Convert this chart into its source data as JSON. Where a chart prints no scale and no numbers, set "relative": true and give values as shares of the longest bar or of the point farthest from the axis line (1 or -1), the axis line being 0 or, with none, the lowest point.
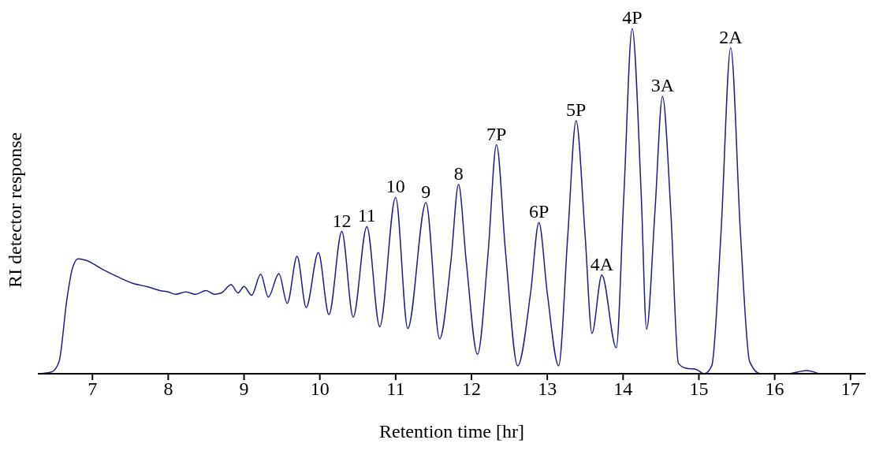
{
  "chart_data": {
    "type": "line",
    "xlabel": "Retention time [hr]",
    "ylabel": "RI detector response",
    "relative": true,
    "xlim": [
      6.28,
      17.2
    ],
    "xticks": [
      7,
      8,
      9,
      10,
      11,
      12,
      13,
      14,
      15,
      16,
      17
    ],
    "grid": false,
    "legend": false,
    "marker": "none",
    "line_style": "solid",
    "series": [
      {
        "color": "#1c1c8c",
        "x": [
          6.3,
          6.46,
          6.56,
          6.66,
          6.73,
          6.81,
          6.92,
          7.12,
          7.33,
          7.53,
          7.74,
          7.89,
          8.0,
          8.1,
          8.23,
          8.36,
          8.5,
          8.61,
          8.7,
          8.83,
          8.92,
          9.0,
          9.1,
          9.22,
          9.32,
          9.46,
          9.57,
          9.7,
          9.82,
          9.98,
          10.12,
          10.29,
          10.44,
          10.62,
          10.79,
          11.0,
          11.16,
          11.4,
          11.58,
          11.73,
          11.83,
          11.93,
          12.08,
          12.22,
          12.33,
          12.45,
          12.61,
          12.78,
          12.89,
          13.0,
          13.15,
          13.27,
          13.38,
          13.5,
          13.59,
          13.72,
          13.91,
          14.01,
          14.12,
          14.24,
          14.31,
          14.42,
          14.52,
          14.63,
          14.73,
          14.83,
          14.97,
          15.07,
          15.17,
          15.29,
          15.42,
          15.55,
          15.67,
          15.81,
          16.17,
          16.42,
          16.58
        ],
        "values": [
          0,
          0.005,
          0.035,
          0.21,
          0.3,
          0.333,
          0.328,
          0.304,
          0.281,
          0.262,
          0.251,
          0.241,
          0.237,
          0.23,
          0.237,
          0.23,
          0.241,
          0.23,
          0.234,
          0.258,
          0.234,
          0.253,
          0.227,
          0.288,
          0.222,
          0.29,
          0.204,
          0.34,
          0.192,
          0.351,
          0.171,
          0.412,
          0.164,
          0.426,
          0.136,
          0.511,
          0.131,
          0.496,
          0.101,
          0.328,
          0.548,
          0.328,
          0.056,
          0.351,
          0.663,
          0.351,
          0.023,
          0.234,
          0.438,
          0.234,
          0.023,
          0.398,
          0.733,
          0.398,
          0.117,
          0.286,
          0.075,
          0.515,
          1.0,
          0.515,
          0.129,
          0.468,
          0.803,
          0.468,
          0.03,
          0.016,
          0.012,
          0,
          0.023,
          0.4,
          0.944,
          0.4,
          0.035,
          0,
          0,
          0.009,
          0
        ]
      }
    ],
    "annotations": [
      {
        "text": "12",
        "x": 10.29,
        "y": 0.412
      },
      {
        "text": "11",
        "x": 10.62,
        "y": 0.426
      },
      {
        "text": "10",
        "x": 11.0,
        "y": 0.511
      },
      {
        "text": "9",
        "x": 11.4,
        "y": 0.496
      },
      {
        "text": "8",
        "x": 11.83,
        "y": 0.548
      },
      {
        "text": "7P",
        "x": 12.33,
        "y": 0.663
      },
      {
        "text": "6P",
        "x": 12.89,
        "y": 0.438
      },
      {
        "text": "5P",
        "x": 13.38,
        "y": 0.733
      },
      {
        "text": "4A",
        "x": 13.72,
        "y": 0.286
      },
      {
        "text": "4P",
        "x": 14.12,
        "y": 1.0
      },
      {
        "text": "3A",
        "x": 14.52,
        "y": 0.803
      },
      {
        "text": "2A",
        "x": 15.42,
        "y": 0.944
      }
    ]
  }
}
